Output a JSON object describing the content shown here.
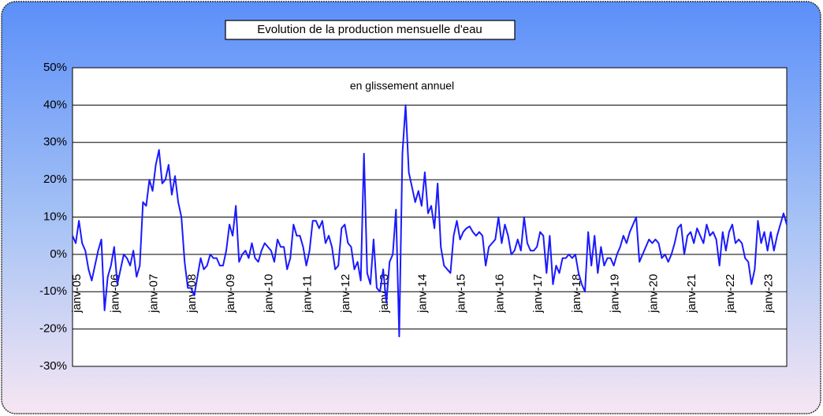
{
  "chart_data": {
    "type": "line",
    "title": "Evolution de la production mensuelle d'eau",
    "subtitle": "en glissement annuel",
    "color": "#1a1aff",
    "grid": true,
    "ylim": [
      -30,
      50
    ],
    "yticks": [
      {
        "value": -30,
        "label": "-30%"
      },
      {
        "value": -20,
        "label": "-20%"
      },
      {
        "value": -10,
        "label": "-10%"
      },
      {
        "value": 0,
        "label": "0%"
      },
      {
        "value": 10,
        "label": "10%"
      },
      {
        "value": 20,
        "label": "20%"
      },
      {
        "value": 30,
        "label": "30%"
      },
      {
        "value": 40,
        "label": "40%"
      },
      {
        "value": 50,
        "label": "50%"
      }
    ],
    "categories": [
      "janv-05",
      null,
      null,
      null,
      null,
      null,
      null,
      null,
      null,
      null,
      null,
      null,
      "janv-06",
      null,
      null,
      null,
      null,
      null,
      null,
      null,
      null,
      null,
      null,
      null,
      "janv-07",
      null,
      null,
      null,
      null,
      null,
      null,
      null,
      null,
      null,
      null,
      null,
      "janv-08",
      null,
      null,
      null,
      null,
      null,
      null,
      null,
      null,
      null,
      null,
      null,
      "janv-09",
      null,
      null,
      null,
      null,
      null,
      null,
      null,
      null,
      null,
      null,
      null,
      "janv-10",
      null,
      null,
      null,
      null,
      null,
      null,
      null,
      null,
      null,
      null,
      null,
      "janv-11",
      null,
      null,
      null,
      null,
      null,
      null,
      null,
      null,
      null,
      null,
      null,
      "janv-12",
      null,
      null,
      null,
      null,
      null,
      null,
      null,
      null,
      null,
      null,
      null,
      "janv-13",
      null,
      null,
      null,
      null,
      null,
      null,
      null,
      null,
      null,
      null,
      null,
      "janv-14",
      null,
      null,
      null,
      null,
      null,
      null,
      null,
      null,
      null,
      null,
      null,
      "janv-15",
      null,
      null,
      null,
      null,
      null,
      null,
      null,
      null,
      null,
      null,
      null,
      "janv-16",
      null,
      null,
      null,
      null,
      null,
      null,
      null,
      null,
      null,
      null,
      null,
      "janv-17",
      null,
      null,
      null,
      null,
      null,
      null,
      null,
      null,
      null,
      null,
      null,
      "janv-18",
      null,
      null,
      null,
      null,
      null,
      null,
      null,
      null,
      null,
      null,
      null,
      "janv-19",
      null,
      null,
      null,
      null,
      null,
      null,
      null,
      null,
      null,
      null,
      null,
      "janv-20",
      null,
      null,
      null,
      null,
      null,
      null,
      null,
      null,
      null,
      null,
      null,
      "janv-21",
      null,
      null,
      null,
      null,
      null,
      null,
      null,
      null,
      null,
      null,
      null,
      "janv-22",
      null,
      null,
      null,
      null,
      null,
      null,
      null,
      null,
      null,
      null,
      null,
      "janv-23",
      null,
      null,
      null,
      null,
      null,
      null,
      null
    ],
    "values": [
      5,
      3,
      9,
      3,
      1,
      -4,
      -7,
      -3,
      1,
      4,
      -15,
      -6,
      -3,
      2,
      -8,
      -4,
      0,
      -1,
      -3,
      1,
      -6,
      -3,
      14,
      13,
      20,
      17,
      24,
      28,
      19,
      20,
      24,
      16,
      21,
      14,
      10,
      -2,
      -9,
      -9,
      -11,
      -6,
      -1,
      -4,
      -3,
      0,
      -1,
      -1,
      -3,
      -3,
      1,
      8,
      5,
      13,
      -2,
      0,
      1,
      -1,
      3,
      -1,
      -2,
      1,
      3,
      2,
      1,
      -2,
      4,
      2,
      2,
      -4,
      -1,
      8,
      5,
      5,
      2,
      -3,
      1,
      9,
      9,
      7,
      9,
      3,
      5,
      2,
      -4,
      -3,
      7,
      8,
      3,
      2,
      -4,
      -2,
      -7,
      27,
      -5,
      -8,
      4,
      -9,
      -10,
      -4,
      -13,
      -2,
      0,
      12,
      -22,
      27,
      40,
      22,
      18,
      14,
      17,
      13,
      22,
      11,
      13,
      7,
      19,
      2,
      -3,
      -4,
      -5,
      5,
      9,
      4,
      6,
      7,
      7.5,
      6,
      5,
      6,
      5,
      -3,
      2,
      3,
      4,
      10,
      3,
      8,
      5,
      0,
      1,
      4,
      1,
      10,
      3,
      1,
      1,
      2,
      6,
      5,
      -5,
      5,
      -8,
      -3,
      -5,
      -1,
      -1,
      0,
      -1,
      0,
      -5,
      -8,
      -10,
      6,
      -3,
      5,
      -5,
      2,
      -3,
      -1,
      -1,
      -3,
      0,
      2,
      5,
      3,
      6,
      8,
      10,
      -2,
      0,
      2,
      4,
      3,
      4,
      3,
      -1,
      0,
      -2,
      0,
      3,
      7,
      8,
      0,
      5,
      6,
      3,
      7,
      5,
      3,
      8,
      5,
      6,
      4,
      -3,
      6,
      1,
      6,
      8,
      3,
      4,
      3,
      -1,
      -2,
      -8,
      -4,
      9,
      3,
      6,
      1,
      6,
      1,
      5,
      8,
      11,
      8
    ]
  }
}
